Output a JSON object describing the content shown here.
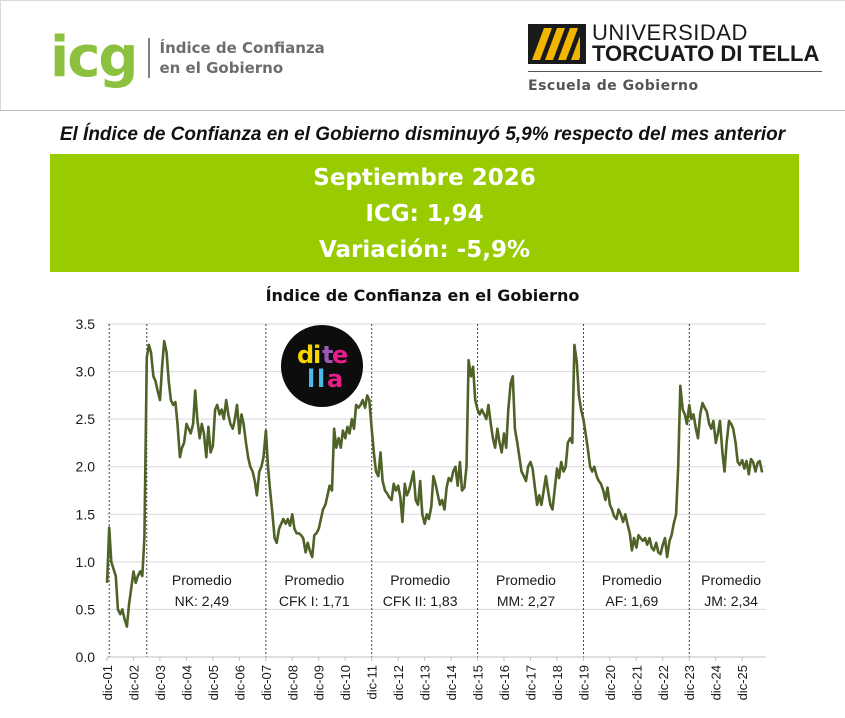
{
  "header": {
    "icg_logo_text": "icg",
    "icg_subtitle_line1": "Índice de Confianza",
    "icg_subtitle_line2": "en el Gobierno",
    "university_line1": "UNIVERSIDAD",
    "university_line2": "TORCUATO DI TELLA",
    "school": "Escuela de Gobierno"
  },
  "headline": "El Índice de Confianza en el Gobierno disminuyó 5,9% respecto del mes anterior",
  "summary": {
    "period": "Septiembre 2026",
    "icg": "ICG: 1,94",
    "variation": "Variación: -5,9%"
  },
  "badge": {
    "line1": "di te",
    "line2": "lla",
    "letters": [
      "d",
      "i",
      "t",
      "e",
      "l",
      "l",
      "a"
    ]
  },
  "colors": {
    "accent": "#99cc00",
    "line": "#4f6228",
    "icg_logo": "#8cc13f"
  },
  "chart_data": {
    "type": "line",
    "title": "Índice de Confianza en el Gobierno",
    "ylim": [
      0,
      3.5
    ],
    "yticks": [
      "0.0",
      "0.5",
      "1.0",
      "1.5",
      "2.0",
      "2.5",
      "3.0",
      "3.5"
    ],
    "grid": true,
    "x_tick_labels": [
      "dic-01",
      "dic-02",
      "dic-03",
      "dic-04",
      "dic-05",
      "dic-06",
      "dic-07",
      "dic-08",
      "dic-09",
      "dic-10",
      "dic-11",
      "dic-12",
      "dic-13",
      "dic-14",
      "dic-15",
      "dic-16",
      "dic-17",
      "dic-18",
      "dic-19",
      "dic-20",
      "dic-21",
      "dic-22",
      "dic-23",
      "dic-24",
      "dic-25"
    ],
    "x_first": 2001.917,
    "x_last": 2026.667,
    "series_points": [
      [
        2001.92,
        0.78
      ],
      [
        2002.0,
        1.36
      ],
      [
        2002.08,
        1.0
      ],
      [
        2002.25,
        0.85
      ],
      [
        2002.33,
        0.5
      ],
      [
        2002.42,
        0.45
      ],
      [
        2002.5,
        0.5
      ],
      [
        2002.58,
        0.4
      ],
      [
        2002.67,
        0.32
      ],
      [
        2002.75,
        0.55
      ],
      [
        2002.83,
        0.72
      ],
      [
        2002.92,
        0.9
      ],
      [
        2003.0,
        0.78
      ],
      [
        2003.08,
        0.85
      ],
      [
        2003.17,
        0.9
      ],
      [
        2003.25,
        0.85
      ],
      [
        2003.33,
        1.25
      ],
      [
        2003.42,
        3.15
      ],
      [
        2003.5,
        3.28
      ],
      [
        2003.58,
        3.2
      ],
      [
        2003.67,
        2.95
      ],
      [
        2003.75,
        2.9
      ],
      [
        2003.83,
        2.8
      ],
      [
        2003.92,
        2.7
      ],
      [
        2004.0,
        3.05
      ],
      [
        2004.08,
        3.32
      ],
      [
        2004.17,
        3.2
      ],
      [
        2004.25,
        2.9
      ],
      [
        2004.33,
        2.7
      ],
      [
        2004.42,
        2.65
      ],
      [
        2004.5,
        2.68
      ],
      [
        2004.58,
        2.45
      ],
      [
        2004.67,
        2.1
      ],
      [
        2004.75,
        2.2
      ],
      [
        2004.83,
        2.25
      ],
      [
        2004.92,
        2.45
      ],
      [
        2005.0,
        2.4
      ],
      [
        2005.08,
        2.35
      ],
      [
        2005.17,
        2.45
      ],
      [
        2005.25,
        2.8
      ],
      [
        2005.33,
        2.5
      ],
      [
        2005.42,
        2.3
      ],
      [
        2005.5,
        2.45
      ],
      [
        2005.58,
        2.35
      ],
      [
        2005.67,
        2.1
      ],
      [
        2005.75,
        2.42
      ],
      [
        2005.83,
        2.15
      ],
      [
        2005.92,
        2.22
      ],
      [
        2006.0,
        2.6
      ],
      [
        2006.08,
        2.65
      ],
      [
        2006.17,
        2.55
      ],
      [
        2006.25,
        2.6
      ],
      [
        2006.33,
        2.5
      ],
      [
        2006.42,
        2.7
      ],
      [
        2006.5,
        2.55
      ],
      [
        2006.58,
        2.45
      ],
      [
        2006.67,
        2.4
      ],
      [
        2006.75,
        2.5
      ],
      [
        2006.83,
        2.65
      ],
      [
        2006.92,
        2.35
      ],
      [
        2007.0,
        2.55
      ],
      [
        2007.08,
        2.45
      ],
      [
        2007.17,
        2.25
      ],
      [
        2007.25,
        2.1
      ],
      [
        2007.33,
        2.0
      ],
      [
        2007.42,
        1.95
      ],
      [
        2007.5,
        1.85
      ],
      [
        2007.58,
        1.7
      ],
      [
        2007.67,
        1.95
      ],
      [
        2007.75,
        2.0
      ],
      [
        2007.83,
        2.1
      ],
      [
        2007.92,
        2.38
      ],
      [
        2008.0,
        2.0
      ],
      [
        2008.08,
        1.75
      ],
      [
        2008.17,
        1.5
      ],
      [
        2008.25,
        1.25
      ],
      [
        2008.33,
        1.2
      ],
      [
        2008.42,
        1.35
      ],
      [
        2008.5,
        1.4
      ],
      [
        2008.58,
        1.45
      ],
      [
        2008.67,
        1.4
      ],
      [
        2008.75,
        1.45
      ],
      [
        2008.83,
        1.38
      ],
      [
        2008.92,
        1.5
      ],
      [
        2009.0,
        1.35
      ],
      [
        2009.08,
        1.3
      ],
      [
        2009.17,
        1.3
      ],
      [
        2009.25,
        1.28
      ],
      [
        2009.33,
        1.25
      ],
      [
        2009.42,
        1.1
      ],
      [
        2009.5,
        1.2
      ],
      [
        2009.58,
        1.12
      ],
      [
        2009.67,
        1.05
      ],
      [
        2009.75,
        1.28
      ],
      [
        2009.83,
        1.3
      ],
      [
        2009.92,
        1.35
      ],
      [
        2010.0,
        1.45
      ],
      [
        2010.08,
        1.55
      ],
      [
        2010.17,
        1.6
      ],
      [
        2010.25,
        1.7
      ],
      [
        2010.33,
        1.8
      ],
      [
        2010.42,
        1.75
      ],
      [
        2010.5,
        2.4
      ],
      [
        2010.58,
        2.2
      ],
      [
        2010.67,
        2.3
      ],
      [
        2010.75,
        2.2
      ],
      [
        2010.83,
        2.38
      ],
      [
        2010.92,
        2.3
      ],
      [
        2011.0,
        2.42
      ],
      [
        2011.08,
        2.35
      ],
      [
        2011.17,
        2.5
      ],
      [
        2011.25,
        2.4
      ],
      [
        2011.33,
        2.65
      ],
      [
        2011.42,
        2.62
      ],
      [
        2011.5,
        2.65
      ],
      [
        2011.58,
        2.7
      ],
      [
        2011.67,
        2.62
      ],
      [
        2011.75,
        2.75
      ],
      [
        2011.83,
        2.7
      ],
      [
        2011.92,
        2.4
      ],
      [
        2012.0,
        2.15
      ],
      [
        2012.08,
        1.95
      ],
      [
        2012.17,
        1.9
      ],
      [
        2012.25,
        2.15
      ],
      [
        2012.33,
        1.85
      ],
      [
        2012.42,
        1.75
      ],
      [
        2012.5,
        1.72
      ],
      [
        2012.58,
        1.68
      ],
      [
        2012.67,
        1.65
      ],
      [
        2012.75,
        1.82
      ],
      [
        2012.83,
        1.75
      ],
      [
        2012.92,
        1.8
      ],
      [
        2013.0,
        1.68
      ],
      [
        2013.08,
        1.42
      ],
      [
        2013.17,
        1.82
      ],
      [
        2013.25,
        1.7
      ],
      [
        2013.33,
        1.75
      ],
      [
        2013.42,
        1.85
      ],
      [
        2013.5,
        1.95
      ],
      [
        2013.58,
        1.65
      ],
      [
        2013.67,
        1.6
      ],
      [
        2013.75,
        1.85
      ],
      [
        2013.83,
        1.5
      ],
      [
        2013.92,
        1.4
      ],
      [
        2014.0,
        1.5
      ],
      [
        2014.08,
        1.45
      ],
      [
        2014.17,
        1.58
      ],
      [
        2014.25,
        1.9
      ],
      [
        2014.33,
        1.82
      ],
      [
        2014.42,
        1.7
      ],
      [
        2014.5,
        1.6
      ],
      [
        2014.58,
        1.65
      ],
      [
        2014.67,
        1.55
      ],
      [
        2014.75,
        1.78
      ],
      [
        2014.83,
        1.88
      ],
      [
        2014.92,
        1.85
      ],
      [
        2015.0,
        1.95
      ],
      [
        2015.08,
        2.0
      ],
      [
        2015.17,
        1.8
      ],
      [
        2015.25,
        2.05
      ],
      [
        2015.33,
        1.75
      ],
      [
        2015.42,
        1.78
      ],
      [
        2015.5,
        2.0
      ],
      [
        2015.58,
        3.12
      ],
      [
        2015.67,
        2.95
      ],
      [
        2015.75,
        3.05
      ],
      [
        2015.83,
        2.7
      ],
      [
        2015.92,
        2.6
      ],
      [
        2016.0,
        2.55
      ],
      [
        2016.08,
        2.6
      ],
      [
        2016.17,
        2.55
      ],
      [
        2016.25,
        2.5
      ],
      [
        2016.33,
        2.65
      ],
      [
        2016.42,
        2.45
      ],
      [
        2016.5,
        2.3
      ],
      [
        2016.58,
        2.2
      ],
      [
        2016.67,
        2.4
      ],
      [
        2016.75,
        2.25
      ],
      [
        2016.83,
        2.15
      ],
      [
        2016.92,
        2.35
      ],
      [
        2017.0,
        2.2
      ],
      [
        2017.08,
        2.6
      ],
      [
        2017.17,
        2.88
      ],
      [
        2017.25,
        2.95
      ],
      [
        2017.33,
        2.4
      ],
      [
        2017.42,
        2.25
      ],
      [
        2017.5,
        2.1
      ],
      [
        2017.58,
        1.95
      ],
      [
        2017.67,
        1.9
      ],
      [
        2017.75,
        1.85
      ],
      [
        2017.83,
        2.0
      ],
      [
        2017.92,
        2.05
      ],
      [
        2018.0,
        1.98
      ],
      [
        2018.08,
        1.8
      ],
      [
        2018.17,
        1.6
      ],
      [
        2018.25,
        1.7
      ],
      [
        2018.33,
        1.6
      ],
      [
        2018.42,
        1.75
      ],
      [
        2018.5,
        1.9
      ],
      [
        2018.58,
        1.75
      ],
      [
        2018.67,
        1.6
      ],
      [
        2018.75,
        1.55
      ],
      [
        2018.83,
        1.75
      ],
      [
        2018.92,
        1.98
      ],
      [
        2019.0,
        1.88
      ],
      [
        2019.08,
        2.05
      ],
      [
        2019.17,
        1.95
      ],
      [
        2019.25,
        2.0
      ],
      [
        2019.33,
        2.25
      ],
      [
        2019.42,
        2.3
      ],
      [
        2019.5,
        2.25
      ],
      [
        2019.58,
        3.28
      ],
      [
        2019.67,
        3.1
      ],
      [
        2019.75,
        2.75
      ],
      [
        2019.83,
        2.6
      ],
      [
        2019.92,
        2.5
      ],
      [
        2020.0,
        2.35
      ],
      [
        2020.08,
        2.2
      ],
      [
        2020.17,
        2.0
      ],
      [
        2020.25,
        1.95
      ],
      [
        2020.33,
        2.0
      ],
      [
        2020.42,
        1.9
      ],
      [
        2020.5,
        1.85
      ],
      [
        2020.58,
        1.82
      ],
      [
        2020.67,
        1.75
      ],
      [
        2020.75,
        1.65
      ],
      [
        2020.83,
        1.78
      ],
      [
        2020.92,
        1.6
      ],
      [
        2021.0,
        1.55
      ],
      [
        2021.08,
        1.48
      ],
      [
        2021.17,
        1.45
      ],
      [
        2021.25,
        1.55
      ],
      [
        2021.33,
        1.5
      ],
      [
        2021.42,
        1.42
      ],
      [
        2021.5,
        1.5
      ],
      [
        2021.58,
        1.4
      ],
      [
        2021.67,
        1.3
      ],
      [
        2021.75,
        1.12
      ],
      [
        2021.83,
        1.25
      ],
      [
        2021.92,
        1.15
      ],
      [
        2022.0,
        1.28
      ],
      [
        2022.08,
        1.25
      ],
      [
        2022.17,
        1.22
      ],
      [
        2022.25,
        1.25
      ],
      [
        2022.33,
        1.18
      ],
      [
        2022.42,
        1.25
      ],
      [
        2022.5,
        1.15
      ],
      [
        2022.58,
        1.12
      ],
      [
        2022.67,
        1.2
      ],
      [
        2022.75,
        1.1
      ],
      [
        2022.83,
        1.08
      ],
      [
        2022.92,
        1.18
      ],
      [
        2023.0,
        1.25
      ],
      [
        2023.08,
        1.05
      ],
      [
        2023.17,
        1.22
      ],
      [
        2023.25,
        1.28
      ],
      [
        2023.33,
        1.4
      ],
      [
        2023.42,
        1.5
      ],
      [
        2023.5,
        2.0
      ],
      [
        2023.58,
        2.85
      ],
      [
        2023.67,
        2.6
      ],
      [
        2023.75,
        2.55
      ],
      [
        2023.83,
        2.45
      ],
      [
        2023.92,
        2.65
      ],
      [
        2024.0,
        2.5
      ],
      [
        2024.08,
        2.55
      ],
      [
        2024.17,
        2.4
      ],
      [
        2024.25,
        2.3
      ],
      [
        2024.33,
        2.55
      ],
      [
        2024.42,
        2.67
      ],
      [
        2024.5,
        2.62
      ],
      [
        2024.58,
        2.58
      ],
      [
        2024.67,
        2.45
      ],
      [
        2024.75,
        2.4
      ],
      [
        2024.83,
        2.48
      ],
      [
        2024.92,
        2.25
      ],
      [
        2025.0,
        2.35
      ],
      [
        2025.08,
        2.48
      ],
      [
        2025.17,
        2.15
      ],
      [
        2025.25,
        1.95
      ],
      [
        2025.33,
        2.25
      ],
      [
        2025.42,
        2.48
      ],
      [
        2025.5,
        2.45
      ],
      [
        2025.58,
        2.4
      ],
      [
        2025.67,
        2.25
      ],
      [
        2025.75,
        2.05
      ],
      [
        2025.83,
        2.02
      ],
      [
        2025.92,
        2.07
      ],
      [
        2026.0,
        1.98
      ],
      [
        2026.08,
        2.06
      ],
      [
        2026.17,
        1.92
      ],
      [
        2026.25,
        2.08
      ],
      [
        2026.33,
        2.05
      ],
      [
        2026.42,
        1.95
      ],
      [
        2026.5,
        2.04
      ],
      [
        2026.58,
        2.06
      ],
      [
        2026.67,
        1.94
      ]
    ],
    "period_dividers": [
      2002.0,
      2003.42,
      2007.92,
      2011.92,
      2015.92,
      2019.92,
      2023.92
    ],
    "annotations": [
      {
        "x_center": 2005.5,
        "line1": "Promedio",
        "line2": "NK: 2,49"
      },
      {
        "x_center": 2009.75,
        "line1": "Promedio",
        "line2": "CFK I: 1,71"
      },
      {
        "x_center": 2013.75,
        "line1": "Promedio",
        "line2": "CFK II: 1,83"
      },
      {
        "x_center": 2017.75,
        "line1": "Promedio",
        "line2": "MM: 2,27"
      },
      {
        "x_center": 2021.75,
        "line1": "Promedio",
        "line2": "AF: 1,69"
      },
      {
        "x_center": 2025.5,
        "line1": "Promedio",
        "line2": "JM: 2,34"
      }
    ]
  }
}
